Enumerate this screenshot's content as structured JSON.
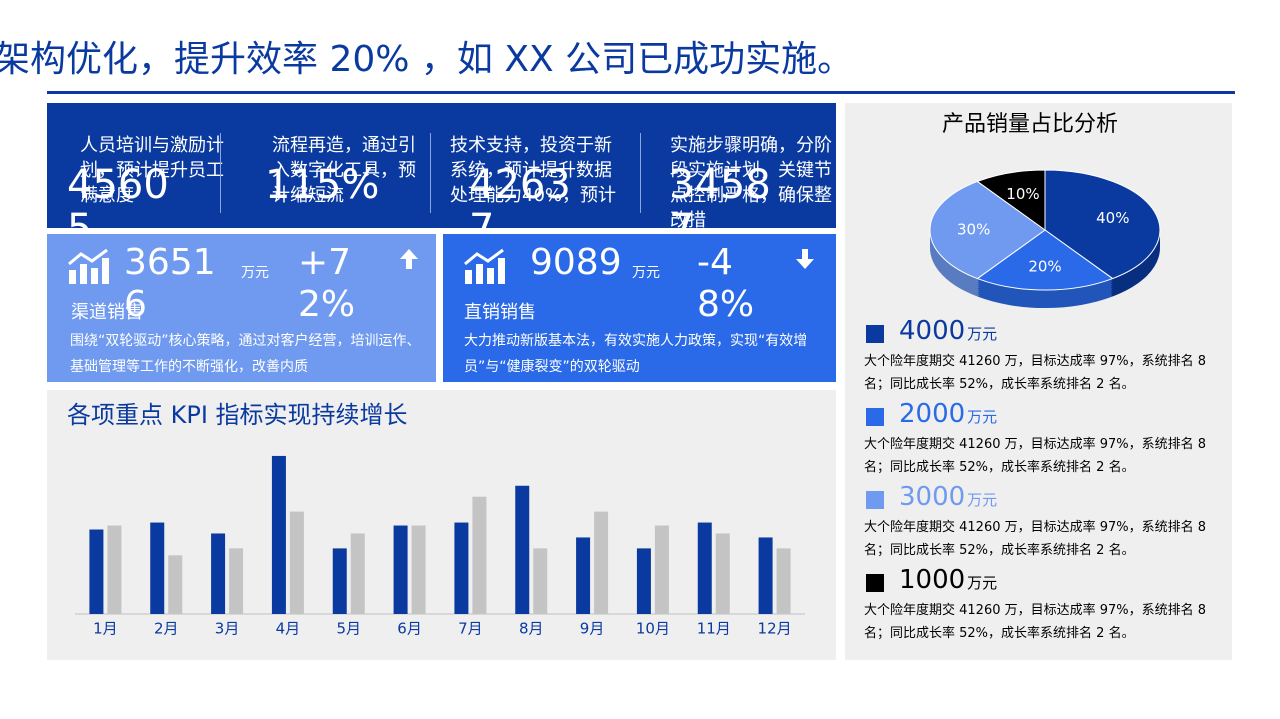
{
  "header": {
    "title": "架构优化，提升效率 20% ，如 XX 公司已成功实施。"
  },
  "top_panel": [
    {
      "text": "人员培训与激励计划，预计提升员工满意度",
      "number": "45605"
    },
    {
      "text": "流程再造，通过引入数字化工具，预计缩短流",
      "number": "115%"
    },
    {
      "text": "技术支持，投资于新系统，预计提升数据处理能力40%，预计",
      "number": "42637"
    },
    {
      "text": "实施步骤明确，分阶段实施计划，关键节点控制严格，确保整改措",
      "number": "34587"
    }
  ],
  "cards": [
    {
      "value": "36516",
      "unit": "万元",
      "change": "+72%",
      "label": "渠道销售",
      "desc": "围绕“双轮驱动”核心策略，通过对客户经营，培训运作、基础管理等工作的不断强化，改善内质"
    },
    {
      "value": "9089",
      "unit": "万元",
      "change": "-48%",
      "label": "直销销售",
      "desc": "大力推动新版基本法，有效实施人力政策，实现“有效增员”与“健康裂变”的双轮驱动"
    }
  ],
  "chart_data": [
    {
      "type": "bar",
      "title": "各项重点 KPI 指标实现持续增长",
      "categories": [
        "1月",
        "2月",
        "3月",
        "4月",
        "5月",
        "6月",
        "7月",
        "8月",
        "9月",
        "10月",
        "11月",
        "12月"
      ],
      "series": [
        {
          "color": "#0a3aa0",
          "values": [
            85,
            92,
            81,
            159,
            66,
            89,
            92,
            129,
            77,
            66,
            92,
            77
          ]
        },
        {
          "color": "#c4c4c4",
          "values": [
            89,
            59,
            66,
            103,
            81,
            89,
            118,
            66,
            103,
            89,
            81,
            66
          ]
        }
      ],
      "ylim": [
        0,
        170
      ]
    },
    {
      "type": "pie",
      "title": "产品销量占比分析",
      "values": [
        40,
        20,
        30,
        10
      ],
      "value_labels": [
        "40%",
        "20%",
        "30%",
        "10%"
      ],
      "colors": [
        "#0a3aa0",
        "#2a6ae8",
        "#6f9af0",
        "#000000"
      ]
    }
  ],
  "legend_items": [
    {
      "value": "4000",
      "unit": "万元",
      "color": "#0a3aa0",
      "desc": "大个险年度期交 41260 万，目标达成率 97%，系统排名 8 名；同比成长率 52%，成长率系统排名 2 名。"
    },
    {
      "value": "2000",
      "unit": "万元",
      "color": "#2a6ae8",
      "desc": "大个险年度期交 41260 万，目标达成率 97%，系统排名 8 名；同比成长率 52%，成长率系统排名 2 名。"
    },
    {
      "value": "3000",
      "unit": "万元",
      "color": "#6f9af0",
      "desc": "大个险年度期交 41260 万，目标达成率 97%，系统排名 8 名；同比成长率 52%，成长率系统排名 2 名。"
    },
    {
      "value": "1000",
      "unit": "万元",
      "color": "#000000",
      "desc": "大个险年度期交 41260 万，目标达成率 97%，系统排名 8 名；同比成长率 52%，成长率系统排名 2 名。"
    }
  ]
}
